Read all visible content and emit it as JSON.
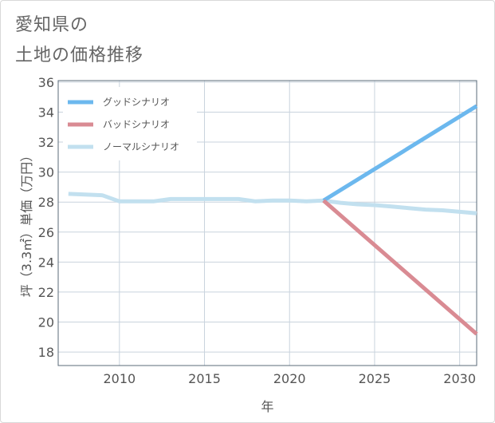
{
  "title": {
    "line1": "愛知県の",
    "line2": "土地の価格推移"
  },
  "colors": {
    "good": "#6cb8ee",
    "bad": "#d98b93",
    "normal": "#c2e0ef",
    "grid": "#c9d3dd",
    "axis": "#5b6b7a",
    "text": "#555555"
  },
  "chart_data": {
    "type": "line",
    "xlabel": "年",
    "ylabel": "坪（3.3㎡）単価（万円）",
    "xlim": [
      2006.4,
      2031
    ],
    "ylim": [
      17.1,
      36.1
    ],
    "x_ticks": [
      2010,
      2015,
      2020,
      2025,
      2030
    ],
    "x_tick_labels": [
      "2010",
      "2015",
      "2020",
      "2025",
      "2030"
    ],
    "y_ticks": [
      18,
      20,
      22,
      24,
      26,
      28,
      30,
      32,
      34,
      36
    ],
    "y_tick_labels": [
      "18",
      "20",
      "22",
      "24",
      "26",
      "28",
      "30",
      "32",
      "34",
      "36"
    ],
    "grid": true,
    "legend_position": "top-left",
    "series": [
      {
        "name": "グッドシナリオ",
        "color": "#6cb8ee",
        "x": [
          2022,
          2031
        ],
        "y": [
          28.1,
          34.4
        ]
      },
      {
        "name": "バッドシナリオ",
        "color": "#d98b93",
        "x": [
          2022,
          2031
        ],
        "y": [
          28.1,
          19.2
        ]
      },
      {
        "name": "ノーマルシナリオ",
        "color": "#c2e0ef",
        "x": [
          2007,
          2008,
          2009,
          2010,
          2011,
          2012,
          2013,
          2014,
          2015,
          2016,
          2017,
          2018,
          2019,
          2020,
          2021,
          2022,
          2023,
          2024,
          2025,
          2026,
          2027,
          2028,
          2029,
          2030,
          2031
        ],
        "y": [
          28.55,
          28.5,
          28.45,
          28.05,
          28.05,
          28.05,
          28.2,
          28.2,
          28.2,
          28.2,
          28.2,
          28.05,
          28.1,
          28.1,
          28.05,
          28.1,
          27.95,
          27.85,
          27.8,
          27.7,
          27.6,
          27.5,
          27.45,
          27.35,
          27.25
        ]
      }
    ]
  }
}
